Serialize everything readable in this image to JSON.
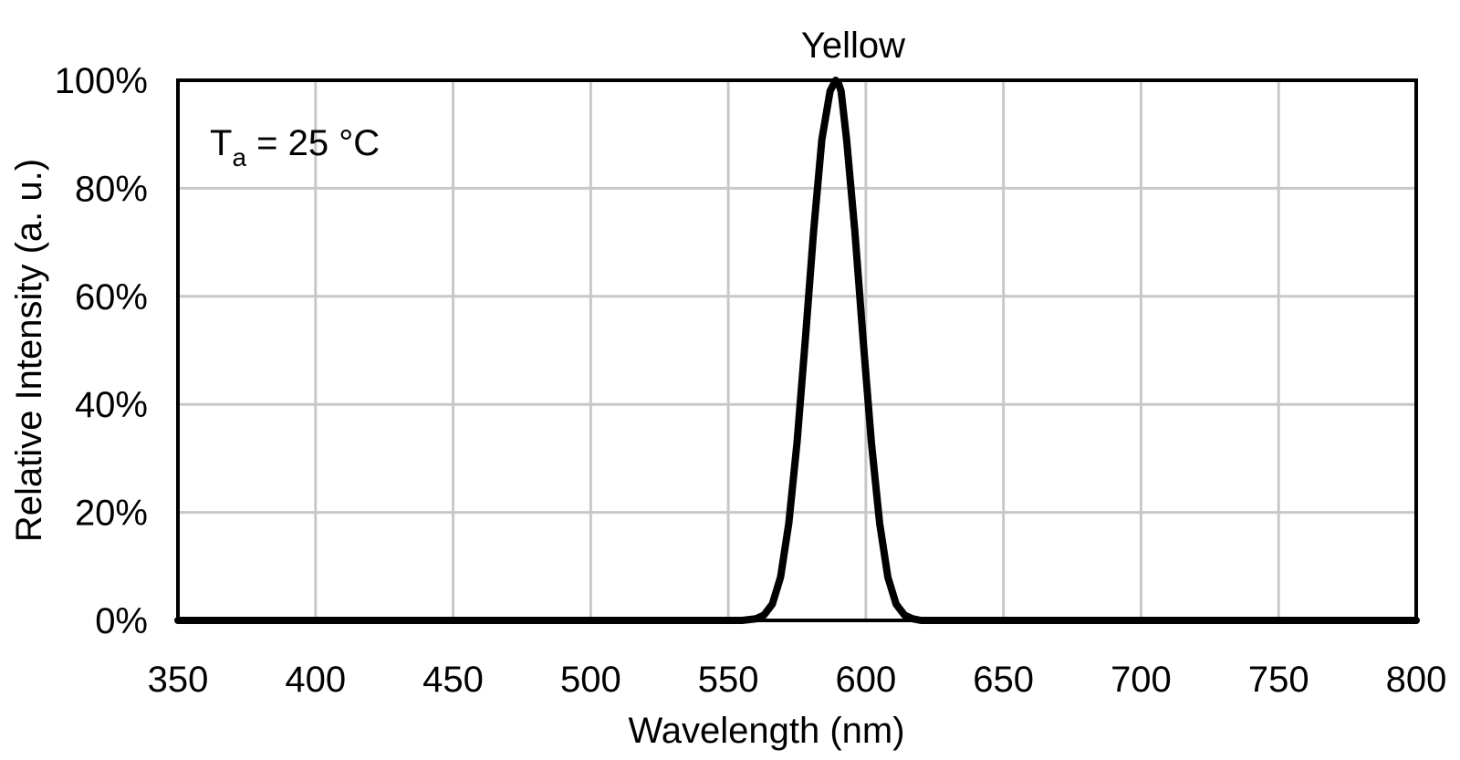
{
  "chart_data": {
    "type": "line",
    "title": "Yellow",
    "xlabel": "Wavelength (nm)",
    "ylabel": "Relative Intensity (a. u.)",
    "annotation": {
      "main": "T",
      "subscript": "a",
      "suffix": " = 25 °C"
    },
    "xlim": [
      350,
      800
    ],
    "ylim": [
      0,
      100
    ],
    "x_ticks": [
      350,
      400,
      450,
      500,
      550,
      600,
      650,
      700,
      750,
      800
    ],
    "x_tick_labels": [
      "350",
      "400",
      "450",
      "500",
      "550",
      "600",
      "650",
      "700",
      "750",
      "800"
    ],
    "y_ticks": [
      0,
      20,
      40,
      60,
      80,
      100
    ],
    "y_tick_labels": [
      "0%",
      "20%",
      "40%",
      "60%",
      "80%",
      "100%"
    ],
    "grid": true,
    "legend": "none",
    "series": [
      {
        "color": "#000000",
        "x": [
          350,
          555,
          560,
          563,
          566,
          569,
          572,
          575,
          578,
          581,
          584,
          587,
          589,
          590,
          591,
          593,
          596,
          599,
          602,
          605,
          608,
          611,
          614,
          617,
          620,
          625,
          800
        ],
        "y": [
          0,
          0,
          0.3,
          1,
          3,
          8,
          18,
          33,
          52,
          72,
          89,
          98,
          100,
          99.5,
          98,
          89,
          72,
          52,
          33,
          18,
          8,
          3,
          1,
          0.3,
          0,
          0,
          0
        ]
      }
    ]
  }
}
